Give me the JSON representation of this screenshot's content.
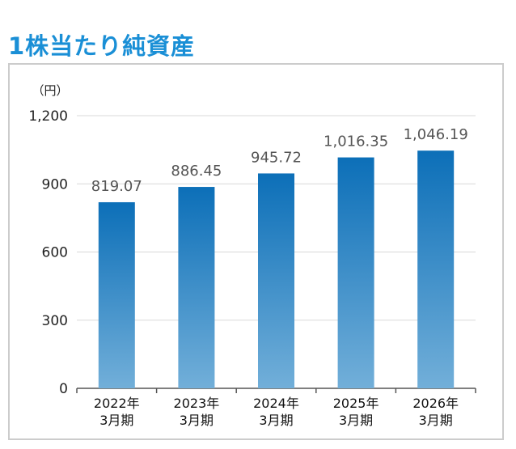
{
  "title": "1株当たり純資産",
  "chart_data": {
    "type": "bar",
    "unit": "（円）",
    "categories": [
      [
        "2022年",
        "3月期"
      ],
      [
        "2023年",
        "3月期"
      ],
      [
        "2024年",
        "3月期"
      ],
      [
        "2025年",
        "3月期"
      ],
      [
        "2026年",
        "3月期"
      ]
    ],
    "values": [
      819.07,
      886.45,
      945.72,
      1016.35,
      1046.19
    ],
    "value_labels": [
      "819.07",
      "886.45",
      "945.72",
      "1,016.35",
      "1,046.19"
    ],
    "ylim": [
      0,
      1200
    ],
    "yticks": [
      0,
      300,
      600,
      900,
      1200
    ],
    "ytick_labels": [
      "0",
      "300",
      "600",
      "900",
      "1,200"
    ],
    "grid": true,
    "colors": {
      "bar_top": "#0c6fb8",
      "bar_bottom": "#72afd9",
      "title": "#1a8fd6"
    }
  }
}
